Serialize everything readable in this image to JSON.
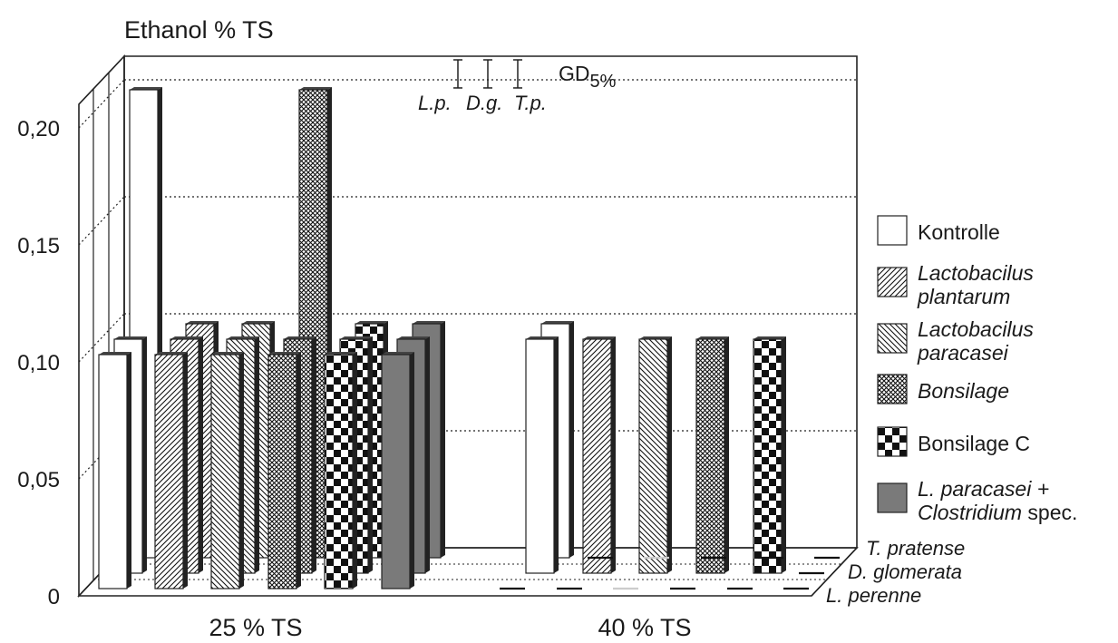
{
  "chart_data": {
    "type": "bar",
    "title": "Ethanol % TS",
    "ylim": [
      0,
      0.2
    ],
    "yticks": [
      "0",
      "0,05",
      "0,10",
      "0,15",
      "0,20"
    ],
    "categories": [
      "25 % TS",
      "40 % TS"
    ],
    "depth_labels": [
      "T. pratense",
      "D. glomerata",
      "L. perenne"
    ],
    "gd_label": "GD",
    "gd_subscript": "5%",
    "gd_items": [
      {
        "label": "L.p.",
        "value": 0.01
      },
      {
        "label": "D.g.",
        "value": 0.01
      },
      {
        "label": "T.p.",
        "value": 0.01
      }
    ],
    "legend_placement": "right",
    "grid": true,
    "series": [
      {
        "name": "Kontrolle",
        "pattern": "white",
        "values": {
          "L. perenne": [
            0.1,
            0.0
          ],
          "D. glomerata": [
            0.1,
            0.1
          ],
          "T. pratense": [
            0.2,
            0.1
          ]
        }
      },
      {
        "name": "Lactobacilus plantarum",
        "pattern": "hatch-right",
        "values": {
          "L. perenne": [
            0.1,
            0.0
          ],
          "D. glomerata": [
            0.1,
            0.1
          ],
          "T. pratense": [
            0.1,
            0.0
          ]
        }
      },
      {
        "name": "Lactobacilus paracasei",
        "pattern": "hatch-left",
        "values": {
          "L. perenne": [
            0.1,
            0.0
          ],
          "D. glomerata": [
            0.1,
            0.1
          ],
          "T. pratense": [
            0.1,
            0.0
          ]
        }
      },
      {
        "name": "Bonsilage",
        "pattern": "crosshatch",
        "values": {
          "L. perenne": [
            0.1,
            0.0
          ],
          "D. glomerata": [
            0.1,
            0.1
          ],
          "T. pratense": [
            0.2,
            0.0
          ]
        }
      },
      {
        "name": "Bonsilage C",
        "pattern": "checker",
        "values": {
          "L. perenne": [
            0.1,
            0.0
          ],
          "D. glomerata": [
            0.1,
            0.1
          ],
          "T. pratense": [
            0.1,
            0.0
          ]
        }
      },
      {
        "name": "L. paracasei + Clostridium spec.",
        "pattern": "gray",
        "values": {
          "L. perenne": [
            0.1,
            0.0
          ],
          "D. glomerata": [
            0.1,
            0.0
          ],
          "T. pratense": [
            0.1,
            0.0
          ]
        }
      }
    ],
    "legend": [
      {
        "pattern": "white",
        "parts": [
          {
            "t": "Kontrolle",
            "i": false
          }
        ]
      },
      {
        "pattern": "hatch-right",
        "parts": [
          {
            "t": "Lactobacilus",
            "i": true
          },
          {
            "t": "plantarum",
            "i": true
          }
        ]
      },
      {
        "pattern": "hatch-left",
        "parts": [
          {
            "t": "Lactobacilus",
            "i": true
          },
          {
            "t": "paracasei",
            "i": true
          }
        ]
      },
      {
        "pattern": "crosshatch",
        "parts": [
          {
            "t": "Bonsilage",
            "i": true
          }
        ]
      },
      {
        "pattern": "checker",
        "parts": [
          {
            "t": "Bonsilage C",
            "i": false
          }
        ]
      },
      {
        "pattern": "gray",
        "parts": [
          {
            "t": "L. paracasei +",
            "i": true
          },
          {
            "t": "Clostridium",
            "i": true,
            "suffix": " spec."
          }
        ]
      }
    ]
  }
}
